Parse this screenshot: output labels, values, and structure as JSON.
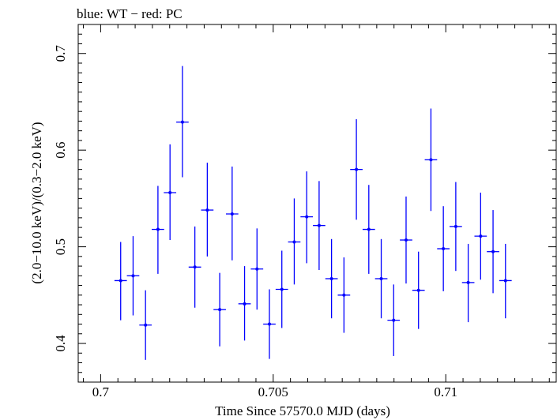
{
  "chart_data": {
    "type": "scatter",
    "title": "blue: WT − red: PC",
    "xlabel": "Time Since 57570.0 MJD (days)",
    "ylabel": "(2.0−10.0 keV)/(0.3−2.0 keV)",
    "xlim": [
      0.69935,
      0.7132
    ],
    "ylim": [
      0.36,
      0.73
    ],
    "x_ticks": [
      0.7,
      0.705,
      0.71
    ],
    "x_tick_labels": [
      "0.7",
      "0.705",
      "0.71"
    ],
    "y_ticks": [
      0.4,
      0.5,
      0.6,
      0.7
    ],
    "y_tick_labels": [
      "0.4",
      "0.5",
      "0.6",
      "0.7"
    ],
    "grid": false,
    "series": [
      {
        "color": "#0000ff",
        "points": [
          {
            "x": 0.70058,
            "y": 0.465,
            "xerr": 0.00018,
            "yerr_lo": 0.041,
            "yerr_hi": 0.04
          },
          {
            "x": 0.70094,
            "y": 0.47,
            "xerr": 0.00018,
            "yerr_lo": 0.041,
            "yerr_hi": 0.041
          },
          {
            "x": 0.7013,
            "y": 0.419,
            "xerr": 0.00018,
            "yerr_lo": 0.036,
            "yerr_hi": 0.036
          },
          {
            "x": 0.70166,
            "y": 0.518,
            "xerr": 0.00018,
            "yerr_lo": 0.046,
            "yerr_hi": 0.045
          },
          {
            "x": 0.70201,
            "y": 0.556,
            "xerr": 0.00018,
            "yerr_lo": 0.049,
            "yerr_hi": 0.05
          },
          {
            "x": 0.70237,
            "y": 0.629,
            "xerr": 0.00018,
            "yerr_lo": 0.057,
            "yerr_hi": 0.058
          },
          {
            "x": 0.70273,
            "y": 0.479,
            "xerr": 0.00018,
            "yerr_lo": 0.042,
            "yerr_hi": 0.042
          },
          {
            "x": 0.70309,
            "y": 0.538,
            "xerr": 0.00018,
            "yerr_lo": 0.048,
            "yerr_hi": 0.049
          },
          {
            "x": 0.70345,
            "y": 0.435,
            "xerr": 0.00018,
            "yerr_lo": 0.038,
            "yerr_hi": 0.038
          },
          {
            "x": 0.70381,
            "y": 0.534,
            "xerr": 0.00018,
            "yerr_lo": 0.048,
            "yerr_hi": 0.049
          },
          {
            "x": 0.70417,
            "y": 0.441,
            "xerr": 0.00018,
            "yerr_lo": 0.038,
            "yerr_hi": 0.039
          },
          {
            "x": 0.70453,
            "y": 0.477,
            "xerr": 0.00018,
            "yerr_lo": 0.042,
            "yerr_hi": 0.042
          },
          {
            "x": 0.70489,
            "y": 0.42,
            "xerr": 0.00018,
            "yerr_lo": 0.036,
            "yerr_hi": 0.036
          },
          {
            "x": 0.70525,
            "y": 0.456,
            "xerr": 0.00018,
            "yerr_lo": 0.04,
            "yerr_hi": 0.04
          },
          {
            "x": 0.70561,
            "y": 0.505,
            "xerr": 0.00018,
            "yerr_lo": 0.044,
            "yerr_hi": 0.045
          },
          {
            "x": 0.70597,
            "y": 0.531,
            "xerr": 0.00018,
            "yerr_lo": 0.048,
            "yerr_hi": 0.047
          },
          {
            "x": 0.70633,
            "y": 0.522,
            "xerr": 0.00018,
            "yerr_lo": 0.046,
            "yerr_hi": 0.046
          },
          {
            "x": 0.70669,
            "y": 0.467,
            "xerr": 0.00018,
            "yerr_lo": 0.041,
            "yerr_hi": 0.041
          },
          {
            "x": 0.70705,
            "y": 0.45,
            "xerr": 0.00018,
            "yerr_lo": 0.039,
            "yerr_hi": 0.039
          },
          {
            "x": 0.70741,
            "y": 0.58,
            "xerr": 0.00018,
            "yerr_lo": 0.052,
            "yerr_hi": 0.052
          },
          {
            "x": 0.70777,
            "y": 0.518,
            "xerr": 0.00018,
            "yerr_lo": 0.046,
            "yerr_hi": 0.046
          },
          {
            "x": 0.70813,
            "y": 0.467,
            "xerr": 0.00018,
            "yerr_lo": 0.041,
            "yerr_hi": 0.041
          },
          {
            "x": 0.70849,
            "y": 0.424,
            "xerr": 0.00018,
            "yerr_lo": 0.037,
            "yerr_hi": 0.037
          },
          {
            "x": 0.70885,
            "y": 0.507,
            "xerr": 0.00018,
            "yerr_lo": 0.045,
            "yerr_hi": 0.045
          },
          {
            "x": 0.70921,
            "y": 0.455,
            "xerr": 0.00018,
            "yerr_lo": 0.04,
            "yerr_hi": 0.04
          },
          {
            "x": 0.70957,
            "y": 0.59,
            "xerr": 0.00018,
            "yerr_lo": 0.053,
            "yerr_hi": 0.053
          },
          {
            "x": 0.70993,
            "y": 0.498,
            "xerr": 0.00018,
            "yerr_lo": 0.044,
            "yerr_hi": 0.044
          },
          {
            "x": 0.71029,
            "y": 0.521,
            "xerr": 0.00018,
            "yerr_lo": 0.046,
            "yerr_hi": 0.046
          },
          {
            "x": 0.71065,
            "y": 0.463,
            "xerr": 0.00018,
            "yerr_lo": 0.041,
            "yerr_hi": 0.04
          },
          {
            "x": 0.71101,
            "y": 0.511,
            "xerr": 0.00018,
            "yerr_lo": 0.045,
            "yerr_hi": 0.045
          },
          {
            "x": 0.71137,
            "y": 0.495,
            "xerr": 0.00018,
            "yerr_lo": 0.043,
            "yerr_hi": 0.043
          },
          {
            "x": 0.71173,
            "y": 0.465,
            "xerr": 0.00018,
            "yerr_lo": 0.039,
            "yerr_hi": 0.038
          }
        ]
      }
    ]
  }
}
